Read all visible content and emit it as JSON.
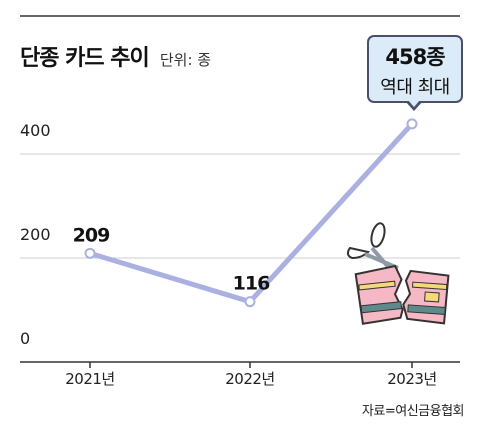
{
  "title": "단종 카드 추이",
  "unit": "단위: 종",
  "source": "자료=여신금융협회",
  "callout": {
    "main": "458종",
    "sub": "역대 최대"
  },
  "colors": {
    "line": "#aab1e2",
    "point": "#ffffff",
    "grid": "#cfcfcf",
    "axis": "#333333",
    "callout_bg": "#dcebf8"
  },
  "illustration": "cut-credit-card-with-scissors-icon",
  "chart_data": {
    "type": "line",
    "categories": [
      "2021년",
      "2022년",
      "2023년"
    ],
    "series": [
      {
        "values": [
          209,
          116,
          458
        ]
      }
    ],
    "data_labels": [
      "209",
      "116",
      ""
    ],
    "yticks": [
      "0",
      "200",
      "400"
    ],
    "ylim": [
      0,
      500
    ],
    "grid": true,
    "title": "단종 카드 추이",
    "xlabel": "",
    "ylabel": ""
  }
}
